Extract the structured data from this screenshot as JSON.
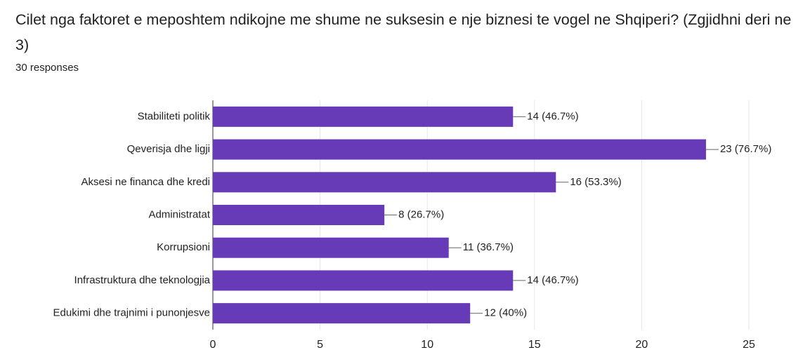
{
  "chart_data": {
    "type": "bar",
    "orientation": "horizontal",
    "title": "Cilet nga faktoret e meposhtem ndikojne me shume ne suksesin e nje biznesi te vogel ne Shqiperi? (Zgjidhni deri ne 3)",
    "subtitle": "30 responses",
    "categories": [
      "Stabiliteti politik",
      "Qeverisja dhe ligji",
      "Aksesi ne financa dhe kredi",
      "Administratat",
      "Korrupsioni",
      "Infrastruktura dhe teknologjia",
      "Edukimi dhe trajnimi i punonjesve"
    ],
    "values": [
      14,
      23,
      16,
      8,
      11,
      14,
      12
    ],
    "value_labels": [
      "14 (46.7%)",
      "23 (76.7%)",
      "16 (53.3%)",
      "8 (26.7%)",
      "11 (36.7%)",
      "14 (46.7%)",
      "12 (40%)"
    ],
    "color": "#673ab7",
    "xlim": [
      0,
      25
    ],
    "xticks": [
      0,
      5,
      10,
      15,
      20,
      25
    ],
    "grid": true
  }
}
